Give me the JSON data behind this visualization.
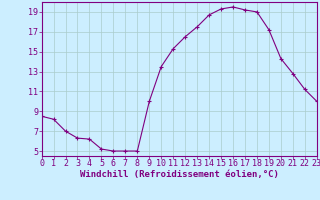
{
  "x": [
    0,
    1,
    2,
    3,
    4,
    5,
    6,
    7,
    8,
    9,
    10,
    11,
    12,
    13,
    14,
    15,
    16,
    17,
    18,
    19,
    20,
    21,
    22,
    23
  ],
  "y": [
    8.5,
    8.2,
    7.0,
    6.3,
    6.2,
    5.2,
    5.0,
    5.0,
    5.0,
    10.0,
    13.5,
    15.3,
    16.5,
    17.5,
    18.7,
    19.3,
    19.5,
    19.2,
    19.0,
    17.2,
    14.3,
    12.8,
    11.2,
    10.0
  ],
  "line_color": "#800080",
  "marker": "+",
  "bg_color": "#cceeff",
  "grid_color": "#aacccc",
  "xlabel": "Windchill (Refroidissement éolien,°C)",
  "tick_color": "#800080",
  "label_color": "#800080",
  "ylim": [
    4.5,
    20.0
  ],
  "xlim": [
    0,
    23
  ],
  "yticks": [
    5,
    7,
    9,
    11,
    13,
    15,
    17,
    19
  ],
  "xticks": [
    0,
    1,
    2,
    3,
    4,
    5,
    6,
    7,
    8,
    9,
    10,
    11,
    12,
    13,
    14,
    15,
    16,
    17,
    18,
    19,
    20,
    21,
    22,
    23
  ],
  "spine_color": "#800080",
  "font_family": "monospace",
  "tick_fontsize": 6.0,
  "xlabel_fontsize": 6.5
}
